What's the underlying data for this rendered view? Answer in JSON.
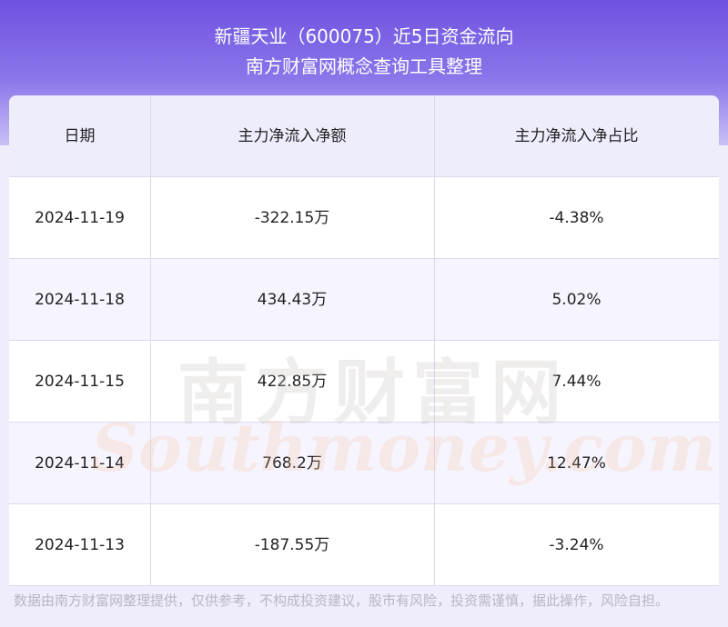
{
  "header": {
    "title": "新疆天业（600075）近5日资金流向",
    "subtitle": "南方财富网概念查询工具整理"
  },
  "table": {
    "columns": [
      "日期",
      "主力净流入净额",
      "主力净流入净占比"
    ],
    "rows": [
      [
        "2024-11-19",
        "-322.15万",
        "-4.38%"
      ],
      [
        "2024-11-18",
        "434.43万",
        "5.02%"
      ],
      [
        "2024-11-15",
        "422.85万",
        "7.44%"
      ],
      [
        "2024-11-14",
        "768.2万",
        "12.47%"
      ],
      [
        "2024-11-13",
        "-187.55万",
        "-3.24%"
      ]
    ]
  },
  "watermark": {
    "cn": "南方财富网",
    "en": "Southmoney.com"
  },
  "footer": {
    "note": "数据由南方财富网整理提供，仅供参考，不构成投资建议，股市有风险，投资需谨慎，据此操作，风险自担。"
  }
}
